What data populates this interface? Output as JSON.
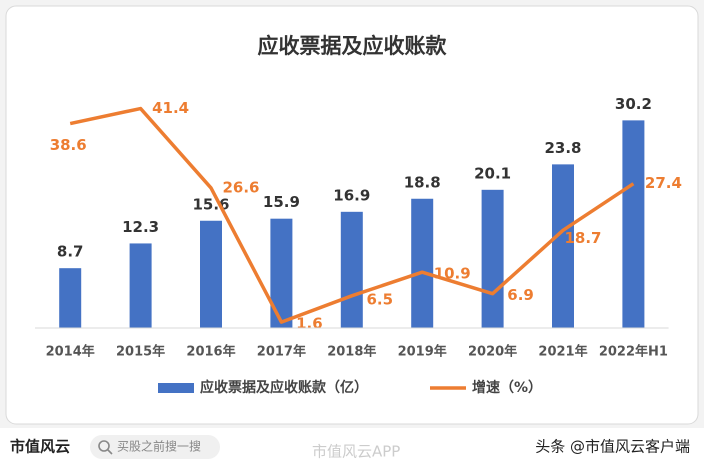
{
  "chart_data": {
    "type": "bar-line",
    "title": "应收票据及应收账款",
    "categories": [
      "2014年",
      "2015年",
      "2016年",
      "2017年",
      "2018年",
      "2019年",
      "2020年",
      "2021年",
      "2022年H1"
    ],
    "series": [
      {
        "name": "应收票据及应收账款（亿）",
        "type": "bar",
        "color": "#4472c4",
        "values": [
          8.7,
          12.3,
          15.6,
          15.9,
          16.9,
          18.8,
          20.1,
          23.8,
          30.2
        ]
      },
      {
        "name": "增速（%）",
        "type": "line",
        "axis": "y2",
        "color": "#ed7d31",
        "values": [
          38.6,
          41.4,
          26.6,
          1.6,
          6.5,
          10.9,
          6.9,
          18.7,
          27.4
        ]
      }
    ],
    "ylim": [
      0,
      32
    ],
    "y2lim": [
      0.5,
      41.5
    ],
    "legend": "bottom"
  },
  "footer": {
    "brand": "市值风云",
    "search": "买股之前搜一搜",
    "watermark": "市值风云APP",
    "account": "头条 @市值风云客户端"
  }
}
